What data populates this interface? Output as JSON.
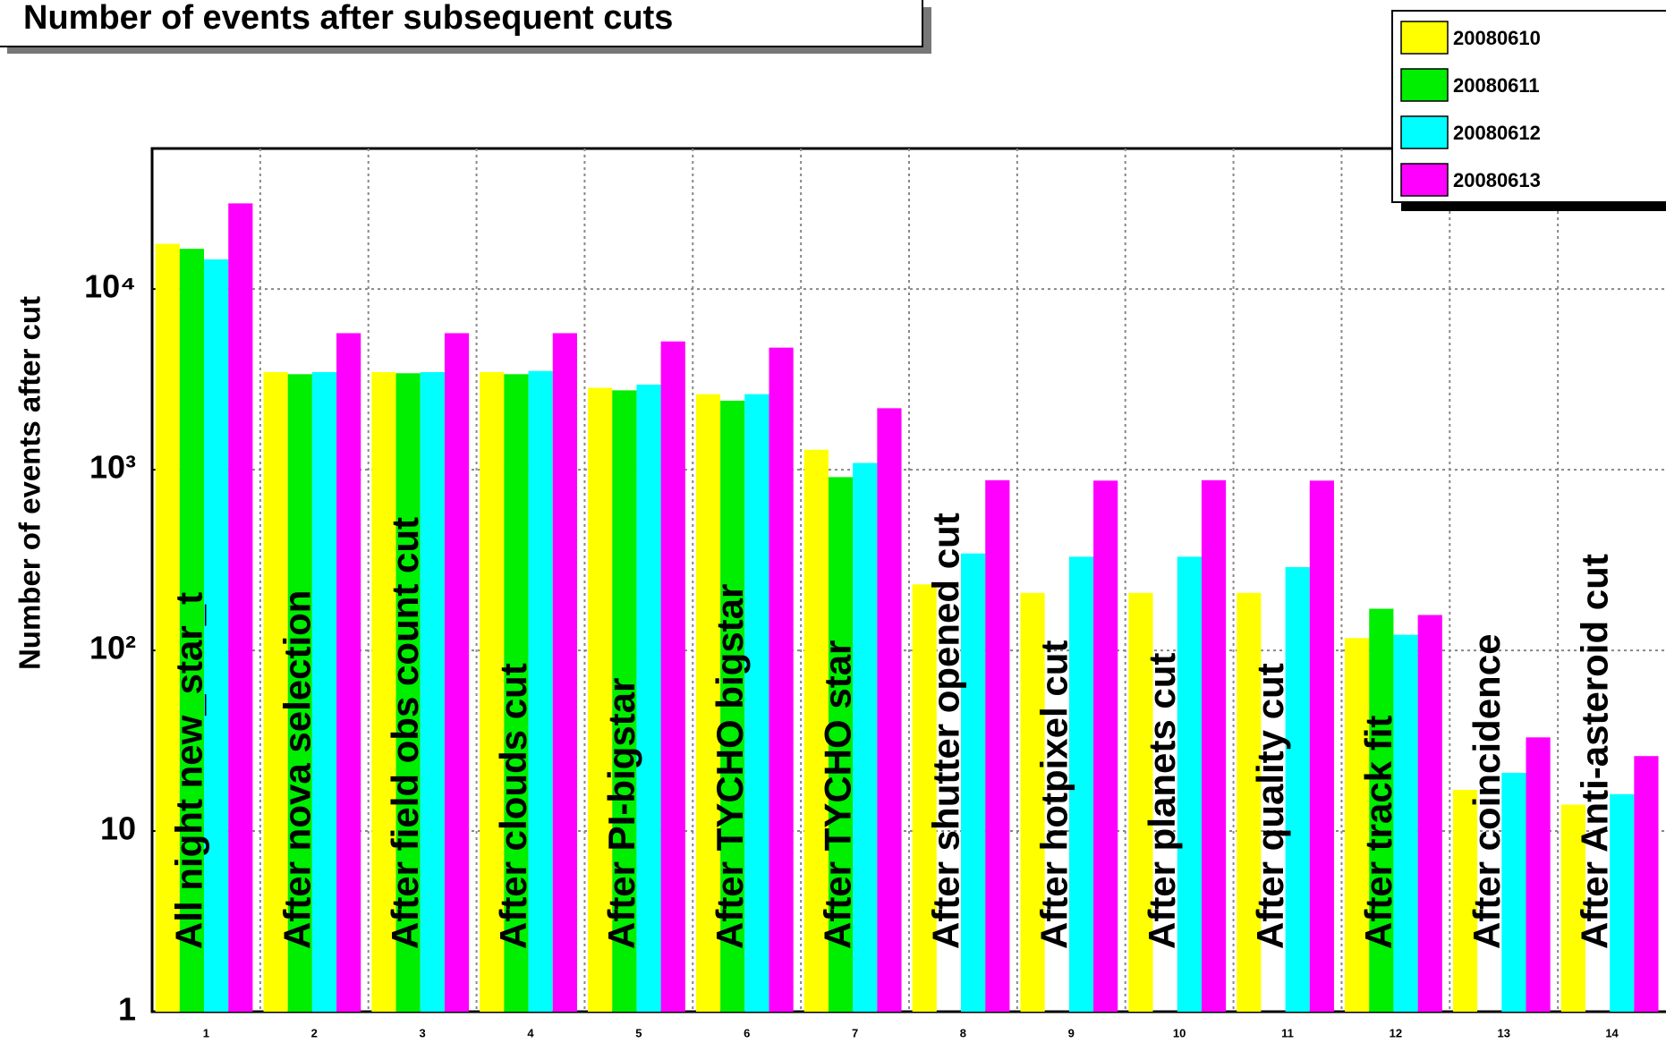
{
  "chart_data": {
    "type": "bar",
    "title": "Number of events after subsequent cuts",
    "y_label": "Number of events after cut",
    "categories": [
      "1",
      "2",
      "3",
      "4",
      "5",
      "6",
      "7",
      "8",
      "9",
      "10",
      "11",
      "12",
      "13",
      "14"
    ],
    "bar_labels": [
      "All night new_star_t",
      "After nova selection",
      "After field obs count cut",
      "After clouds cut",
      "After PI-bigstar",
      "After TYCHO bigstar",
      "After TYCHO star",
      "After shutter opened cut",
      "After hotpixel cut",
      "After planets cut",
      "After quality cut",
      "After track fit",
      "After coincidence",
      "After Anti-asteroid cut"
    ],
    "series": [
      {
        "name": "20080610",
        "color": "#ffff00",
        "values": [
          17800,
          3470,
          3470,
          3470,
          2840,
          2620,
          1290,
          232,
          208,
          208,
          208,
          117,
          16.9,
          14
        ]
      },
      {
        "name": "20080611",
        "color": "#00ee00",
        "values": [
          16700,
          3380,
          3420,
          3380,
          2750,
          2410,
          910,
          null,
          null,
          null,
          null,
          170,
          null,
          null
        ]
      },
      {
        "name": "20080612",
        "color": "#00ffff",
        "values": [
          14600,
          3470,
          3470,
          3520,
          2960,
          2620,
          1090,
          344,
          330,
          330,
          289,
          122,
          21,
          16
        ]
      },
      {
        "name": "20080613",
        "color": "#ff00ff",
        "values": [
          29800,
          5700,
          5700,
          5700,
          5130,
          4740,
          2190,
          875,
          870,
          875,
          870,
          157,
          33,
          26
        ]
      }
    ],
    "ylim": [
      1,
      60000
    ],
    "log_y": true,
    "yticks": [
      1,
      10,
      {
        "value": 100,
        "label": "10²"
      },
      {
        "value": 1000,
        "label": "10³"
      },
      {
        "value": 10000,
        "label": "10⁴"
      }
    ],
    "grid": true,
    "legend": "top-right"
  }
}
